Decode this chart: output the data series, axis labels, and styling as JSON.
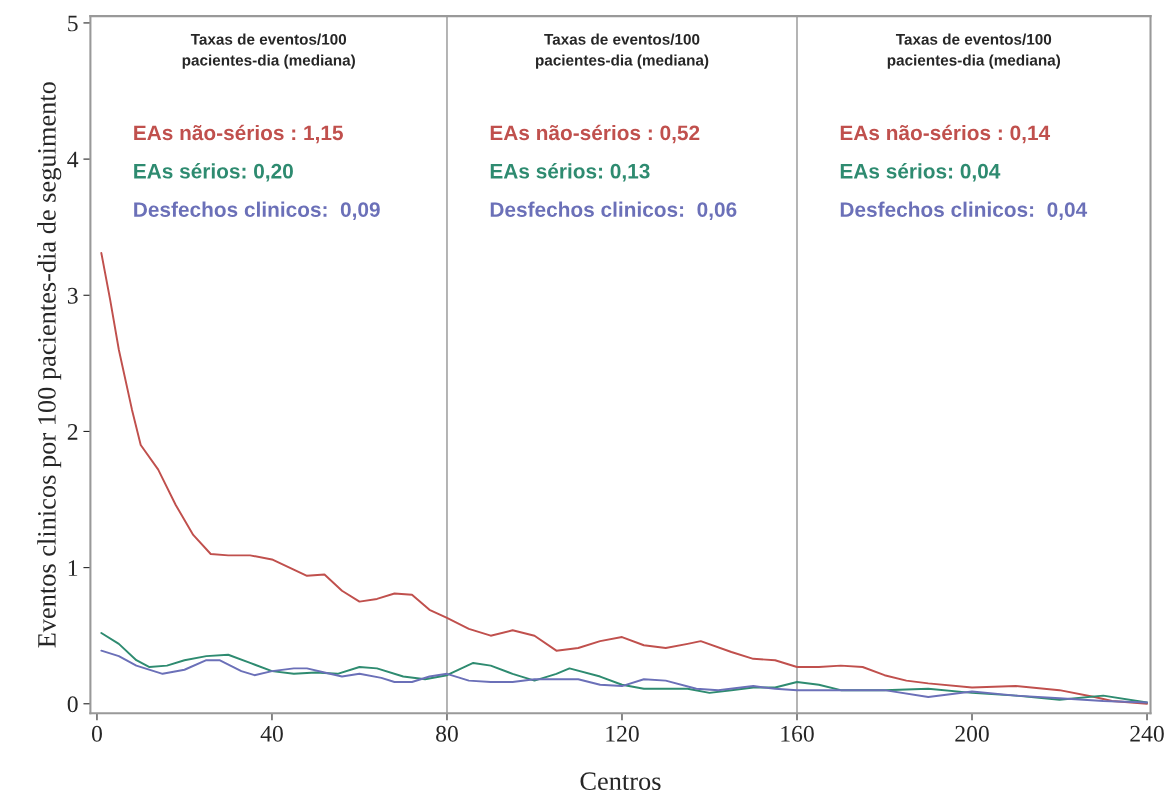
{
  "chart_data": {
    "type": "line",
    "xlabel": "Centros",
    "ylabel": "Eventos clinicos por 100 pacientes-dia de seguimento",
    "xlim": [
      -1.5,
      240.8
    ],
    "ylim": [
      -0.07,
      5.05
    ],
    "xticks": [
      0,
      40,
      80,
      120,
      160,
      200,
      240
    ],
    "yticks": [
      0,
      1,
      2,
      3,
      4,
      5
    ],
    "grid": false,
    "legend": false,
    "ref_lines": [
      {
        "axis": "x",
        "value": 80,
        "color": "#a6a6a6"
      },
      {
        "axis": "x",
        "value": 160,
        "color": "#a6a6a6"
      }
    ],
    "annotations": [
      "Taxas de eventos/100\npacientes-dia (mediana)",
      "EAs não-sérios : 1,15",
      "EAs sérios: 0,20",
      "Desfechos clinicos:  0,09",
      "Taxas de eventos/100\npacientes-dia (mediana)",
      "EAs não-sérios : 0,52",
      "EAs sérios: 0,13",
      "Desfechos clinicos:  0,06",
      "Taxas de eventos/100\npacientes-dia (mediana)",
      "EAs não-sérios : 0,14",
      "EAs sérios: 0,04",
      "Desfechos clinicos:  0,04"
    ],
    "series": [
      {
        "color": "#c0504d",
        "x": [
          1,
          3,
          5,
          8,
          10,
          14,
          18,
          22,
          26,
          30,
          35,
          40,
          44,
          48,
          52,
          56,
          60,
          64,
          68,
          72,
          76,
          80,
          85,
          90,
          95,
          100,
          105,
          110,
          115,
          120,
          125,
          130,
          135,
          138,
          145,
          150,
          155,
          160,
          165,
          170,
          175,
          180,
          185,
          190,
          200,
          210,
          220,
          228,
          232,
          240
        ],
        "values": [
          3.31,
          2.97,
          2.6,
          2.16,
          1.9,
          1.72,
          1.46,
          1.24,
          1.1,
          1.09,
          1.09,
          1.06,
          1.0,
          0.94,
          0.95,
          0.83,
          0.75,
          0.77,
          0.81,
          0.8,
          0.69,
          0.63,
          0.55,
          0.5,
          0.54,
          0.5,
          0.39,
          0.41,
          0.46,
          0.49,
          0.43,
          0.41,
          0.44,
          0.46,
          0.38,
          0.33,
          0.32,
          0.27,
          0.27,
          0.28,
          0.27,
          0.21,
          0.17,
          0.15,
          0.12,
          0.13,
          0.1,
          0.05,
          0.02,
          0.0
        ]
      },
      {
        "color": "#2e8b70",
        "x": [
          1,
          5,
          9,
          12,
          16,
          20,
          25,
          30,
          35,
          40,
          45,
          50,
          55,
          60,
          64,
          70,
          75,
          80,
          86,
          90,
          95,
          100,
          105,
          108,
          115,
          120,
          125,
          135,
          140,
          145,
          150,
          155,
          160,
          165,
          170,
          180,
          190,
          200,
          210,
          220,
          230,
          240
        ],
        "values": [
          0.52,
          0.44,
          0.32,
          0.27,
          0.28,
          0.32,
          0.35,
          0.36,
          0.3,
          0.24,
          0.22,
          0.23,
          0.22,
          0.27,
          0.26,
          0.2,
          0.18,
          0.21,
          0.3,
          0.28,
          0.22,
          0.17,
          0.22,
          0.26,
          0.2,
          0.14,
          0.11,
          0.11,
          0.08,
          0.1,
          0.12,
          0.12,
          0.16,
          0.14,
          0.1,
          0.1,
          0.11,
          0.08,
          0.06,
          0.03,
          0.06,
          0.01
        ]
      },
      {
        "color": "#6b70b8",
        "x": [
          1,
          5,
          9,
          15,
          20,
          25,
          28,
          33,
          36,
          40,
          45,
          48,
          52,
          56,
          60,
          65,
          68,
          72,
          76,
          80,
          85,
          90,
          95,
          100,
          105,
          110,
          115,
          120,
          125,
          130,
          137,
          142,
          150,
          155,
          160,
          170,
          180,
          190,
          200,
          210,
          220,
          230,
          240
        ],
        "values": [
          0.39,
          0.35,
          0.28,
          0.22,
          0.25,
          0.32,
          0.32,
          0.24,
          0.21,
          0.24,
          0.26,
          0.26,
          0.23,
          0.2,
          0.22,
          0.19,
          0.16,
          0.16,
          0.2,
          0.22,
          0.17,
          0.16,
          0.16,
          0.18,
          0.18,
          0.18,
          0.14,
          0.13,
          0.18,
          0.17,
          0.11,
          0.1,
          0.13,
          0.11,
          0.1,
          0.1,
          0.1,
          0.05,
          0.09,
          0.06,
          0.04,
          0.02,
          0.01
        ]
      }
    ]
  }
}
